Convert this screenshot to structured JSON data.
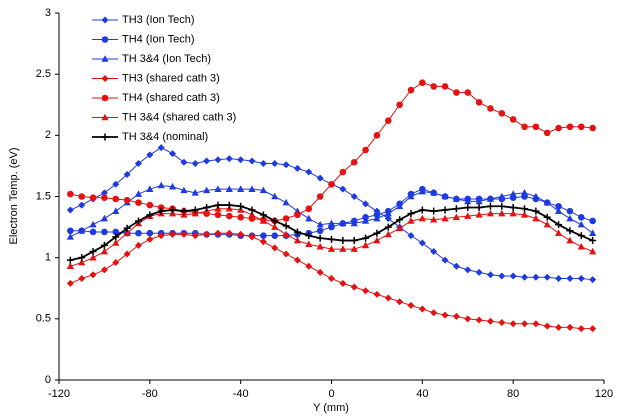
{
  "chart_data": {
    "type": "line",
    "x_label": "Y (mm)",
    "y_label": "Electron Temp. (eV)",
    "xlim": [
      -120,
      120
    ],
    "xticks": [
      -120,
      -80,
      -40,
      0,
      40,
      80,
      120
    ],
    "ylim": [
      0,
      3
    ],
    "yticks": [
      0,
      0.5,
      1,
      1.5,
      2,
      2.5,
      3
    ],
    "grid": false,
    "legend": "upper left",
    "x": [
      -115,
      -110,
      -105,
      -100,
      -95,
      -90,
      -85,
      -80,
      -75,
      -70,
      -65,
      -60,
      -55,
      -50,
      -45,
      -40,
      -35,
      -30,
      -25,
      -20,
      -15,
      -10,
      -5,
      0,
      5,
      10,
      15,
      20,
      25,
      30,
      35,
      40,
      45,
      50,
      55,
      60,
      65,
      70,
      75,
      80,
      85,
      90,
      95,
      100,
      105,
      110,
      115
    ],
    "series": [
      {
        "name": "TH3 (Ion Tech)",
        "color": "#1f3be0",
        "marker": "diamond",
        "values": [
          1.39,
          1.43,
          1.48,
          1.53,
          1.6,
          1.68,
          1.77,
          1.84,
          1.9,
          1.85,
          1.78,
          1.77,
          1.79,
          1.8,
          1.81,
          1.8,
          1.79,
          1.77,
          1.77,
          1.76,
          1.73,
          1.7,
          1.65,
          1.6,
          1.56,
          1.5,
          1.44,
          1.38,
          1.32,
          1.25,
          1.18,
          1.12,
          1.05,
          0.98,
          0.93,
          0.9,
          0.88,
          0.86,
          0.85,
          0.85,
          0.84,
          0.84,
          0.84,
          0.83,
          0.83,
          0.83,
          0.82
        ]
      },
      {
        "name": "TH4 (Ion Tech)",
        "color": "#1f3be0",
        "marker": "circle",
        "values": [
          1.22,
          1.22,
          1.21,
          1.21,
          1.21,
          1.2,
          1.2,
          1.2,
          1.2,
          1.2,
          1.2,
          1.2,
          1.19,
          1.19,
          1.19,
          1.18,
          1.18,
          1.18,
          1.18,
          1.18,
          1.19,
          1.2,
          1.22,
          1.25,
          1.28,
          1.3,
          1.33,
          1.35,
          1.38,
          1.44,
          1.52,
          1.56,
          1.53,
          1.5,
          1.48,
          1.48,
          1.48,
          1.48,
          1.48,
          1.49,
          1.5,
          1.48,
          1.45,
          1.42,
          1.38,
          1.33,
          1.3
        ]
      },
      {
        "name": "TH 3&4 (Ion Tech)",
        "color": "#1f3be0",
        "marker": "triangle",
        "values": [
          1.17,
          1.22,
          1.27,
          1.32,
          1.38,
          1.45,
          1.52,
          1.56,
          1.59,
          1.58,
          1.55,
          1.53,
          1.55,
          1.56,
          1.56,
          1.56,
          1.56,
          1.55,
          1.5,
          1.45,
          1.38,
          1.32,
          1.27,
          1.28,
          1.28,
          1.28,
          1.3,
          1.32,
          1.36,
          1.42,
          1.5,
          1.54,
          1.53,
          1.5,
          1.48,
          1.46,
          1.46,
          1.48,
          1.5,
          1.52,
          1.53,
          1.5,
          1.45,
          1.38,
          1.32,
          1.27,
          1.2
        ]
      },
      {
        "name": "TH3 (shared cath 3)",
        "color": "#e51212",
        "marker": "diamond",
        "values": [
          0.79,
          0.83,
          0.86,
          0.9,
          0.96,
          1.03,
          1.1,
          1.15,
          1.18,
          1.19,
          1.19,
          1.18,
          1.19,
          1.2,
          1.2,
          1.19,
          1.17,
          1.13,
          1.08,
          1.03,
          0.98,
          0.93,
          0.88,
          0.83,
          0.79,
          0.76,
          0.73,
          0.7,
          0.67,
          0.64,
          0.61,
          0.58,
          0.55,
          0.53,
          0.52,
          0.5,
          0.49,
          0.48,
          0.47,
          0.46,
          0.46,
          0.46,
          0.44,
          0.43,
          0.43,
          0.42,
          0.42
        ]
      },
      {
        "name": "TH4 (shared cath 3)",
        "color": "#e51212",
        "marker": "circle",
        "values": [
          1.52,
          1.5,
          1.49,
          1.49,
          1.48,
          1.47,
          1.45,
          1.43,
          1.41,
          1.4,
          1.38,
          1.37,
          1.36,
          1.35,
          1.34,
          1.33,
          1.32,
          1.31,
          1.3,
          1.32,
          1.35,
          1.4,
          1.5,
          1.6,
          1.7,
          1.78,
          1.88,
          2.0,
          2.12,
          2.25,
          2.37,
          2.43,
          2.4,
          2.4,
          2.35,
          2.35,
          2.27,
          2.22,
          2.18,
          2.13,
          2.07,
          2.07,
          2.02,
          2.06,
          2.07,
          2.07,
          2.06
        ]
      },
      {
        "name": "TH 3&4 (shared cath 3)",
        "color": "#e51212",
        "marker": "triangle",
        "values": [
          0.93,
          0.96,
          1.0,
          1.05,
          1.12,
          1.2,
          1.28,
          1.34,
          1.36,
          1.36,
          1.35,
          1.36,
          1.38,
          1.4,
          1.4,
          1.39,
          1.35,
          1.3,
          1.25,
          1.19,
          1.14,
          1.11,
          1.09,
          1.07,
          1.07,
          1.07,
          1.1,
          1.14,
          1.19,
          1.24,
          1.3,
          1.32,
          1.31,
          1.32,
          1.33,
          1.34,
          1.35,
          1.36,
          1.36,
          1.36,
          1.35,
          1.32,
          1.27,
          1.2,
          1.14,
          1.09,
          1.05
        ]
      },
      {
        "name": "TH 3&4 (nominal)",
        "color": "#000000",
        "marker": "plus",
        "values": [
          0.98,
          1.0,
          1.05,
          1.1,
          1.17,
          1.24,
          1.3,
          1.35,
          1.38,
          1.39,
          1.38,
          1.39,
          1.41,
          1.43,
          1.43,
          1.42,
          1.39,
          1.35,
          1.3,
          1.26,
          1.21,
          1.18,
          1.16,
          1.15,
          1.14,
          1.14,
          1.16,
          1.2,
          1.25,
          1.31,
          1.36,
          1.39,
          1.38,
          1.39,
          1.4,
          1.41,
          1.41,
          1.42,
          1.42,
          1.41,
          1.4,
          1.38,
          1.33,
          1.27,
          1.22,
          1.18,
          1.14
        ]
      }
    ]
  }
}
